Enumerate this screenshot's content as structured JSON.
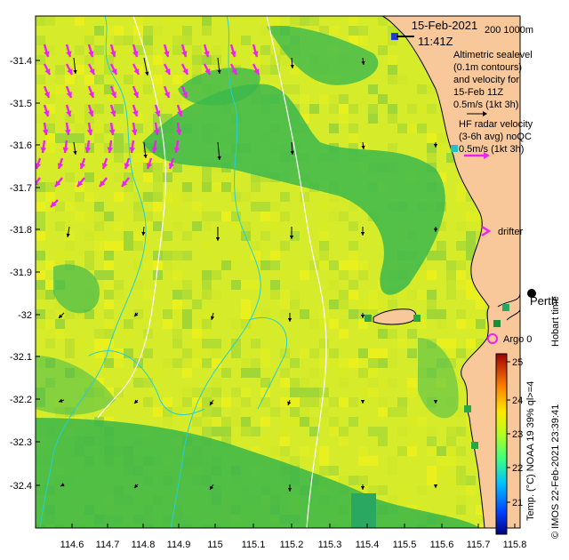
{
  "map": {
    "date": "15-Feb-2021",
    "time": "11:41Z",
    "depth_contours": "200  1000m",
    "altimetry_note": [
      "Altimetric sealevel",
      "(0.1m contours)",
      "and velocity for",
      "15-Feb 11Z",
      "0.5m/s (1kt 3h)"
    ],
    "hf_radar_note": [
      "HF radar velocity",
      "(3-6h avg) noQC",
      "0.5m/s (1kt 3h)"
    ],
    "drifter_label": "drifter",
    "city_label": "Perth",
    "argo_label": "Argo 0",
    "hobart_label": "Hobart time",
    "credit": "© IMOS 22-Feb-2021 23:39:41",
    "colorbar_title": "Temp. (°C) NOAA 19 39% ql>=4",
    "colorbar_ticks": [
      "25",
      "24",
      "23",
      "22",
      "21"
    ],
    "x_ticks": [
      "114.6",
      "114.7",
      "114.8",
      "114.9",
      "115",
      "115.1",
      "115.2",
      "115.3",
      "115.4",
      "115.5",
      "115.6",
      "115.7",
      "115.8"
    ],
    "y_ticks": [
      "-31.4",
      "-31.5",
      "-31.6",
      "-31.7",
      "-31.8",
      "-31.9",
      "-32",
      "-32.1",
      "-32.2",
      "-32.3",
      "-32.4"
    ],
    "colors": {
      "land": "#f8c89a",
      "sst_green": "#33b84a",
      "sst_yellow": "#e6f01e",
      "contour": "#ffffff",
      "isobath": "#22d0d8",
      "hf_arrow": "#ee22ee",
      "alt_arrow": "#000000",
      "argo": "#ee22ee"
    }
  }
}
